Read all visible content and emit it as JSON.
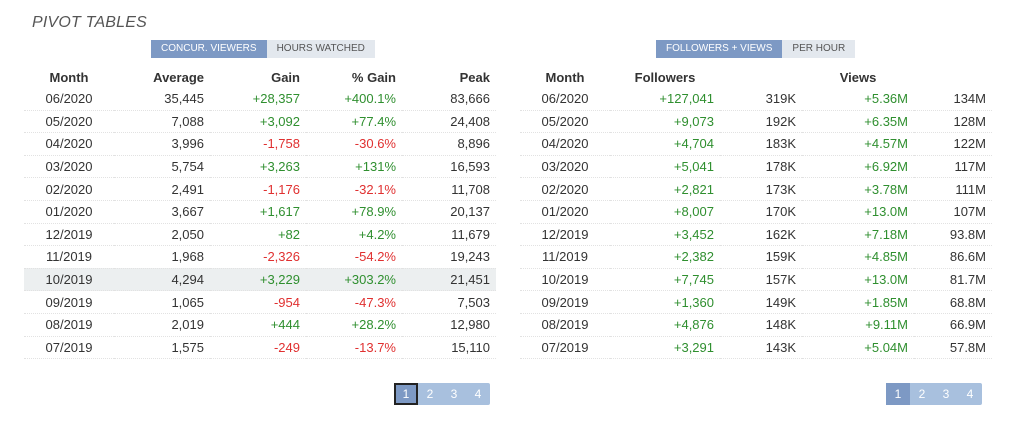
{
  "title": "PIVOT TABLES",
  "left": {
    "tabs": [
      "CONCUR. VIEWERS",
      "HOURS WATCHED"
    ],
    "headers": [
      "Month",
      "Average",
      "Gain",
      "% Gain",
      "Peak"
    ],
    "rows": [
      [
        "06/2020",
        "35,445",
        "+28,357",
        "+400.1%",
        "83,666"
      ],
      [
        "05/2020",
        "7,088",
        "+3,092",
        "+77.4%",
        "24,408"
      ],
      [
        "04/2020",
        "3,996",
        "-1,758",
        "-30.6%",
        "8,896"
      ],
      [
        "03/2020",
        "5,754",
        "+3,263",
        "+131%",
        "16,593"
      ],
      [
        "02/2020",
        "2,491",
        "-1,176",
        "-32.1%",
        "11,708"
      ],
      [
        "01/2020",
        "3,667",
        "+1,617",
        "+78.9%",
        "20,137"
      ],
      [
        "12/2019",
        "2,050",
        "+82",
        "+4.2%",
        "11,679"
      ],
      [
        "11/2019",
        "1,968",
        "-2,326",
        "-54.2%",
        "19,243"
      ],
      [
        "10/2019",
        "4,294",
        "+3,229",
        "+303.2%",
        "21,451"
      ],
      [
        "09/2019",
        "1,065",
        "-954",
        "-47.3%",
        "7,503"
      ],
      [
        "08/2019",
        "2,019",
        "+444",
        "+28.2%",
        "12,980"
      ],
      [
        "07/2019",
        "1,575",
        "-249",
        "-13.7%",
        "15,110"
      ]
    ],
    "pages": [
      "1",
      "2",
      "3",
      "4"
    ]
  },
  "right": {
    "tabs": [
      "FOLLOWERS + VIEWS",
      "PER HOUR"
    ],
    "headers": [
      "Month",
      "Followers",
      "",
      "Views",
      ""
    ],
    "rows": [
      [
        "06/2020",
        "+127,041",
        "319K",
        "+5.36M",
        "134M"
      ],
      [
        "05/2020",
        "+9,073",
        "192K",
        "+6.35M",
        "128M"
      ],
      [
        "04/2020",
        "+4,704",
        "183K",
        "+4.57M",
        "122M"
      ],
      [
        "03/2020",
        "+5,041",
        "178K",
        "+6.92M",
        "117M"
      ],
      [
        "02/2020",
        "+2,821",
        "173K",
        "+3.78M",
        "111M"
      ],
      [
        "01/2020",
        "+8,007",
        "170K",
        "+13.0M",
        "107M"
      ],
      [
        "12/2019",
        "+3,452",
        "162K",
        "+7.18M",
        "93.8M"
      ],
      [
        "11/2019",
        "+2,382",
        "159K",
        "+4.85M",
        "86.6M"
      ],
      [
        "10/2019",
        "+7,745",
        "157K",
        "+13.0M",
        "81.7M"
      ],
      [
        "09/2019",
        "+1,360",
        "149K",
        "+1.85M",
        "68.8M"
      ],
      [
        "08/2019",
        "+4,876",
        "148K",
        "+9.11M",
        "66.9M"
      ],
      [
        "07/2019",
        "+3,291",
        "143K",
        "+5.04M",
        "57.8M"
      ]
    ],
    "pages": [
      "1",
      "2",
      "3",
      "4"
    ]
  },
  "colors": {
    "positive": "#2f8f2f",
    "negative": "#e03030",
    "tab_active": "#7d99c4"
  }
}
